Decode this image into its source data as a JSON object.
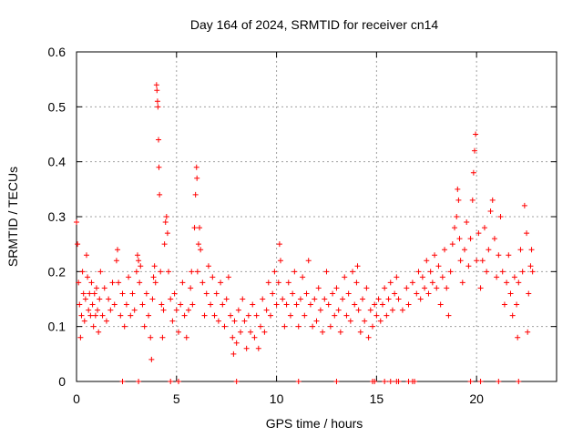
{
  "chart_data": {
    "type": "scatter",
    "title": "Day 164 of 2024, SRMTID for receiver cn14",
    "xlabel": "GPS time / hours",
    "ylabel": "SRMTID / TECUs",
    "xlim": [
      0,
      24
    ],
    "ylim": [
      0,
      0.6
    ],
    "xticks": [
      0,
      5,
      10,
      15,
      20
    ],
    "xtick_labels": [
      "0",
      "5",
      "10",
      "15",
      "20"
    ],
    "yticks": [
      0,
      0.1,
      0.2,
      0.3,
      0.4,
      0.5,
      0.6
    ],
    "ytick_labels": [
      "0",
      "0.1",
      "0.2",
      "0.3",
      "0.4",
      "0.5",
      "0.6"
    ],
    "grid": true,
    "marker": "+",
    "color": "#ff0000",
    "series": [
      {
        "name": "SRMTID",
        "points": [
          [
            0.0,
            0.29
          ],
          [
            0.05,
            0.25
          ],
          [
            0.1,
            0.18
          ],
          [
            0.15,
            0.14
          ],
          [
            0.2,
            0.08
          ],
          [
            0.25,
            0.12
          ],
          [
            0.3,
            0.2
          ],
          [
            0.35,
            0.16
          ],
          [
            0.4,
            0.11
          ],
          [
            0.45,
            0.15
          ],
          [
            0.5,
            0.23
          ],
          [
            0.55,
            0.19
          ],
          [
            0.6,
            0.13
          ],
          [
            0.65,
            0.16
          ],
          [
            0.7,
            0.12
          ],
          [
            0.75,
            0.18
          ],
          [
            0.8,
            0.14
          ],
          [
            0.85,
            0.1
          ],
          [
            0.9,
            0.16
          ],
          [
            0.95,
            0.12
          ],
          [
            1.0,
            0.17
          ],
          [
            1.05,
            0.13
          ],
          [
            1.1,
            0.09
          ],
          [
            1.15,
            0.15
          ],
          [
            1.2,
            0.2
          ],
          [
            1.3,
            0.12
          ],
          [
            1.4,
            0.17
          ],
          [
            1.5,
            0.11
          ],
          [
            1.6,
            0.15
          ],
          [
            1.7,
            0.13
          ],
          [
            1.8,
            0.18
          ],
          [
            1.9,
            0.14
          ],
          [
            2.0,
            0.22
          ],
          [
            2.05,
            0.24
          ],
          [
            2.1,
            0.18
          ],
          [
            2.2,
            0.12
          ],
          [
            2.3,
            0.16
          ],
          [
            2.4,
            0.1
          ],
          [
            2.5,
            0.14
          ],
          [
            2.6,
            0.19
          ],
          [
            2.7,
            0.12
          ],
          [
            2.8,
            0.16
          ],
          [
            2.9,
            0.13
          ],
          [
            3.0,
            0.2
          ],
          [
            3.05,
            0.23
          ],
          [
            3.1,
            0.22
          ],
          [
            3.15,
            0.18
          ],
          [
            3.2,
            0.21
          ],
          [
            3.3,
            0.14
          ],
          [
            3.4,
            0.1
          ],
          [
            3.5,
            0.16
          ],
          [
            3.6,
            0.12
          ],
          [
            3.7,
            0.08
          ],
          [
            3.75,
            0.04
          ],
          [
            3.8,
            0.15
          ],
          [
            3.85,
            0.19
          ],
          [
            3.9,
            0.21
          ],
          [
            3.95,
            0.18
          ],
          [
            4.0,
            0.54
          ],
          [
            4.02,
            0.53
          ],
          [
            4.05,
            0.51
          ],
          [
            4.07,
            0.5
          ],
          [
            4.1,
            0.44
          ],
          [
            4.12,
            0.39
          ],
          [
            4.15,
            0.34
          ],
          [
            4.2,
            0.2
          ],
          [
            4.25,
            0.14
          ],
          [
            4.3,
            0.08
          ],
          [
            4.35,
            0.13
          ],
          [
            4.4,
            0.25
          ],
          [
            4.45,
            0.29
          ],
          [
            4.5,
            0.3
          ],
          [
            4.55,
            0.27
          ],
          [
            4.6,
            0.2
          ],
          [
            4.7,
            0.15
          ],
          [
            4.8,
            0.11
          ],
          [
            4.9,
            0.16
          ],
          [
            5.0,
            0.13
          ],
          [
            5.1,
            0.09
          ],
          [
            5.2,
            0.14
          ],
          [
            5.3,
            0.18
          ],
          [
            5.4,
            0.12
          ],
          [
            5.5,
            0.08
          ],
          [
            5.6,
            0.13
          ],
          [
            5.7,
            0.17
          ],
          [
            5.75,
            0.2
          ],
          [
            5.8,
            0.14
          ],
          [
            5.9,
            0.28
          ],
          [
            5.95,
            0.34
          ],
          [
            6.0,
            0.39
          ],
          [
            6.02,
            0.37
          ],
          [
            6.05,
            0.2
          ],
          [
            6.1,
            0.25
          ],
          [
            6.15,
            0.28
          ],
          [
            6.2,
            0.24
          ],
          [
            6.3,
            0.18
          ],
          [
            6.4,
            0.12
          ],
          [
            6.5,
            0.16
          ],
          [
            6.6,
            0.21
          ],
          [
            6.7,
            0.14
          ],
          [
            6.8,
            0.19
          ],
          [
            6.9,
            0.12
          ],
          [
            7.0,
            0.16
          ],
          [
            7.1,
            0.11
          ],
          [
            7.2,
            0.18
          ],
          [
            7.3,
            0.14
          ],
          [
            7.4,
            0.1
          ],
          [
            7.5,
            0.15
          ],
          [
            7.6,
            0.19
          ],
          [
            7.7,
            0.12
          ],
          [
            7.8,
            0.08
          ],
          [
            7.85,
            0.05
          ],
          [
            7.9,
            0.11
          ],
          [
            8.0,
            0.07
          ],
          [
            8.1,
            0.13
          ],
          [
            8.2,
            0.09
          ],
          [
            8.3,
            0.15
          ],
          [
            8.4,
            0.11
          ],
          [
            8.5,
            0.06
          ],
          [
            8.6,
            0.12
          ],
          [
            8.7,
            0.09
          ],
          [
            8.8,
            0.14
          ],
          [
            8.9,
            0.08
          ],
          [
            9.0,
            0.12
          ],
          [
            9.1,
            0.06
          ],
          [
            9.2,
            0.1
          ],
          [
            9.3,
            0.15
          ],
          [
            9.4,
            0.09
          ],
          [
            9.5,
            0.13
          ],
          [
            9.6,
            0.18
          ],
          [
            9.7,
            0.12
          ],
          [
            9.8,
            0.16
          ],
          [
            9.9,
            0.2
          ],
          [
            10.0,
            0.14
          ],
          [
            10.1,
            0.18
          ],
          [
            10.15,
            0.25
          ],
          [
            10.2,
            0.22
          ],
          [
            10.3,
            0.15
          ],
          [
            10.4,
            0.1
          ],
          [
            10.5,
            0.14
          ],
          [
            10.6,
            0.18
          ],
          [
            10.7,
            0.12
          ],
          [
            10.8,
            0.16
          ],
          [
            10.9,
            0.2
          ],
          [
            11.0,
            0.14
          ],
          [
            11.1,
            0.1
          ],
          [
            11.2,
            0.15
          ],
          [
            11.3,
            0.19
          ],
          [
            11.4,
            0.12
          ],
          [
            11.5,
            0.16
          ],
          [
            11.6,
            0.22
          ],
          [
            11.7,
            0.14
          ],
          [
            11.8,
            0.1
          ],
          [
            11.9,
            0.15
          ],
          [
            12.0,
            0.11
          ],
          [
            12.1,
            0.17
          ],
          [
            12.2,
            0.13
          ],
          [
            12.3,
            0.09
          ],
          [
            12.4,
            0.15
          ],
          [
            12.5,
            0.2
          ],
          [
            12.6,
            0.14
          ],
          [
            12.7,
            0.1
          ],
          [
            12.8,
            0.16
          ],
          [
            12.9,
            0.12
          ],
          [
            13.0,
            0.17
          ],
          [
            13.1,
            0.13
          ],
          [
            13.2,
            0.09
          ],
          [
            13.3,
            0.15
          ],
          [
            13.4,
            0.19
          ],
          [
            13.5,
            0.12
          ],
          [
            13.6,
            0.16
          ],
          [
            13.7,
            0.11
          ],
          [
            13.8,
            0.2
          ],
          [
            13.9,
            0.14
          ],
          [
            14.0,
            0.18
          ],
          [
            14.05,
            0.21
          ],
          [
            14.1,
            0.13
          ],
          [
            14.2,
            0.09
          ],
          [
            14.3,
            0.15
          ],
          [
            14.4,
            0.11
          ],
          [
            14.5,
            0.17
          ],
          [
            14.6,
            0.08
          ],
          [
            14.7,
            0.13
          ],
          [
            14.8,
            0.1
          ],
          [
            14.9,
            0.14
          ],
          [
            15.0,
            0.12
          ],
          [
            15.1,
            0.15
          ],
          [
            15.2,
            0.11
          ],
          [
            15.3,
            0.14
          ],
          [
            15.4,
            0.17
          ],
          [
            15.5,
            0.12
          ],
          [
            15.6,
            0.15
          ],
          [
            15.7,
            0.18
          ],
          [
            15.8,
            0.13
          ],
          [
            15.9,
            0.16
          ],
          [
            16.0,
            0.19
          ],
          [
            16.1,
            0.15
          ],
          [
            16.3,
            0.13
          ],
          [
            16.5,
            0.17
          ],
          [
            16.6,
            0.14
          ],
          [
            16.8,
            0.18
          ],
          [
            17.0,
            0.16
          ],
          [
            17.1,
            0.2
          ],
          [
            17.2,
            0.15
          ],
          [
            17.3,
            0.19
          ],
          [
            17.4,
            0.17
          ],
          [
            17.5,
            0.22
          ],
          [
            17.6,
            0.16
          ],
          [
            17.7,
            0.2
          ],
          [
            17.8,
            0.18
          ],
          [
            17.9,
            0.23
          ],
          [
            18.0,
            0.17
          ],
          [
            18.1,
            0.21
          ],
          [
            18.2,
            0.14
          ],
          [
            18.3,
            0.19
          ],
          [
            18.4,
            0.24
          ],
          [
            18.5,
            0.17
          ],
          [
            18.6,
            0.12
          ],
          [
            18.7,
            0.2
          ],
          [
            18.8,
            0.25
          ],
          [
            18.9,
            0.28
          ],
          [
            19.0,
            0.3
          ],
          [
            19.05,
            0.35
          ],
          [
            19.1,
            0.33
          ],
          [
            19.15,
            0.26
          ],
          [
            19.2,
            0.22
          ],
          [
            19.3,
            0.18
          ],
          [
            19.4,
            0.24
          ],
          [
            19.5,
            0.29
          ],
          [
            19.6,
            0.21
          ],
          [
            19.7,
            0.26
          ],
          [
            19.8,
            0.33
          ],
          [
            19.85,
            0.38
          ],
          [
            19.9,
            0.42
          ],
          [
            19.95,
            0.45
          ],
          [
            20.0,
            0.22
          ],
          [
            20.1,
            0.27
          ],
          [
            20.2,
            0.17
          ],
          [
            20.3,
            0.22
          ],
          [
            20.4,
            0.28
          ],
          [
            20.5,
            0.2
          ],
          [
            20.6,
            0.24
          ],
          [
            20.7,
            0.31
          ],
          [
            20.8,
            0.33
          ],
          [
            20.9,
            0.26
          ],
          [
            21.0,
            0.19
          ],
          [
            21.1,
            0.23
          ],
          [
            21.2,
            0.3
          ],
          [
            21.3,
            0.2
          ],
          [
            21.4,
            0.14
          ],
          [
            21.5,
            0.18
          ],
          [
            21.6,
            0.23
          ],
          [
            21.7,
            0.16
          ],
          [
            21.8,
            0.12
          ],
          [
            21.9,
            0.19
          ],
          [
            22.0,
            0.14
          ],
          [
            22.05,
            0.08
          ],
          [
            22.1,
            0.18
          ],
          [
            22.2,
            0.24
          ],
          [
            22.3,
            0.2
          ],
          [
            22.4,
            0.32
          ],
          [
            22.5,
            0.27
          ],
          [
            22.55,
            0.09
          ],
          [
            22.6,
            0.16
          ],
          [
            22.7,
            0.21
          ],
          [
            22.75,
            0.24
          ],
          [
            22.8,
            0.2
          ]
        ],
        "zero_points": [
          2.3,
          3.1,
          4.7,
          5.1,
          8.0,
          11.1,
          13.0,
          14.8,
          14.9,
          15.4,
          15.7,
          16.0,
          16.1,
          16.6,
          16.8,
          16.9,
          19.7,
          20.2,
          21.1,
          22.1
        ]
      }
    ]
  }
}
